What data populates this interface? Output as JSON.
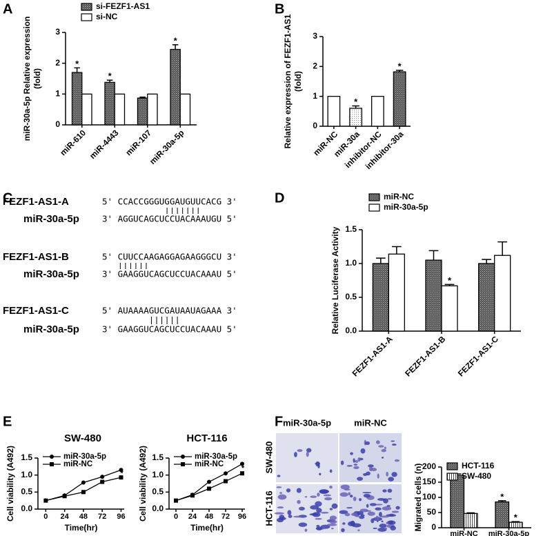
{
  "panel_labels": [
    "A",
    "B",
    "C",
    "D",
    "E",
    "F"
  ],
  "chart_data": [
    {
      "type": "bar",
      "categories": [
        "miR-610",
        "miR-4443",
        "miR-107",
        "miR-30a-5p"
      ],
      "series": [
        {
          "name": "si-FEZF1-AS1",
          "fill": "crosshatch",
          "values": [
            1.7,
            1.38,
            0.87,
            2.45
          ],
          "errors": [
            0.15,
            0.07,
            0.03,
            0.15
          ],
          "significance": [
            "*",
            "*",
            null,
            "*"
          ]
        },
        {
          "name": "si-NC",
          "fill": "white",
          "values": [
            1,
            1,
            1,
            1
          ]
        }
      ],
      "ylabel": [
        "miR-30a-5p Relative expression",
        "(fold)"
      ],
      "ylim": [
        0,
        3
      ],
      "yticks": [
        0,
        1,
        2,
        3
      ],
      "legend": "upper left"
    },
    {
      "type": "bar",
      "categories": [
        "miR-NC",
        "miR-30a",
        "inhibitor-NC",
        "inhibitor-30a"
      ],
      "values": [
        1,
        0.6,
        1,
        1.82
      ],
      "errors": [
        null,
        0.08,
        null,
        0.05
      ],
      "fills": [
        "white",
        "dots",
        "white",
        "crosshatch"
      ],
      "significance": [
        null,
        "*",
        null,
        "*"
      ],
      "ylabel": [
        "Relative expression of FEZF1-AS1",
        "(fold)"
      ],
      "ylim": [
        0,
        3
      ],
      "yticks": [
        0,
        1,
        2,
        3
      ]
    },
    {
      "type": "bar",
      "categories": [
        "FEZF1-AS1-A",
        "FEZF1-AS1-B",
        "FEZF1-AS1-C"
      ],
      "series": [
        {
          "name": "miR-NC",
          "fill": "crosshatch",
          "values": [
            1.0,
            1.05,
            1.0
          ],
          "errors": [
            0.08,
            0.14,
            0.06
          ]
        },
        {
          "name": "miR-30a-5p",
          "fill": "white",
          "values": [
            1.14,
            0.67,
            1.12
          ],
          "errors": [
            0.11,
            0.02,
            0.2
          ],
          "significance": [
            null,
            "*",
            null
          ]
        }
      ],
      "ylabel": [
        "Relative Luciferase Activity"
      ],
      "ylim": [
        0,
        1.5
      ],
      "yticks": [
        {
          "value": 0,
          "label": "0.0"
        },
        {
          "value": 0.5,
          "label": "0.5"
        },
        {
          "value": 1,
          "label": "1.0"
        },
        {
          "value": 1.5,
          "label": "1.5"
        }
      ],
      "legend": "upper left"
    },
    {
      "type": "line",
      "title": "SW-480",
      "x": [
        0,
        24,
        48,
        72,
        96
      ],
      "series": [
        {
          "name": "miR-30a-5p",
          "marker": "circle",
          "values": [
            0.25,
            0.4,
            0.78,
            0.95,
            1.15
          ]
        },
        {
          "name": "miR-NC",
          "marker": "square",
          "values": [
            0.25,
            0.38,
            0.5,
            0.8,
            0.93
          ],
          "significance": [
            null,
            null,
            null,
            null,
            "*"
          ]
        }
      ],
      "xlabel": "Time(hr)",
      "ylabel": [
        "Cell viability (A492)"
      ],
      "xlim": [
        -10,
        100
      ],
      "xticks": [
        0,
        24,
        48,
        72,
        96
      ],
      "ylim": [
        0,
        1.5
      ],
      "yticks": [
        {
          "value": 0,
          "label": "0.0"
        },
        {
          "value": 0.5,
          "label": "0.5"
        },
        {
          "value": 1,
          "label": "1.0"
        },
        {
          "value": 1.5,
          "label": "1.5"
        }
      ],
      "legend": "upper left"
    },
    {
      "type": "line",
      "title": "HCT-116",
      "x": [
        0,
        24,
        48,
        72,
        96
      ],
      "series": [
        {
          "name": "miR-30a-5p",
          "marker": "circle",
          "values": [
            0.25,
            0.42,
            0.8,
            1.05,
            1.33
          ]
        },
        {
          "name": "miR-NC",
          "marker": "square",
          "values": [
            0.25,
            0.4,
            0.6,
            0.82,
            1.05
          ],
          "significance": [
            null,
            null,
            null,
            null,
            "*"
          ]
        }
      ],
      "xlabel": "Time(hr)",
      "ylabel": [
        "Cell viability (A492)"
      ],
      "xlim": [
        -10,
        100
      ],
      "xticks": [
        0,
        24,
        48,
        72,
        96
      ],
      "ylim": [
        0,
        1.5
      ],
      "yticks": [
        {
          "value": 0,
          "label": "0.0"
        },
        {
          "value": 0.5,
          "label": "0.5"
        },
        {
          "value": 1,
          "label": "1.0"
        },
        {
          "value": 1.5,
          "label": "1.5"
        }
      ],
      "legend": "upper left"
    },
    {
      "type": "bar",
      "categories": [
        "miR-NC",
        "miR-30a-5p"
      ],
      "series": [
        {
          "name": "HCT-116",
          "fill": "crosshatch",
          "values": [
            172,
            85
          ],
          "errors": [
            5,
            4
          ],
          "significance": [
            null,
            "*"
          ]
        },
        {
          "name": "SW-480",
          "fill": "vlines",
          "values": [
            47,
            18
          ],
          "errors": [
            2,
            2
          ],
          "significance": [
            null,
            "*"
          ]
        }
      ],
      "ylabel": [
        "Migrated cells (n)"
      ],
      "ylim": [
        0,
        200
      ],
      "yticks": [
        0,
        50,
        100,
        150,
        200
      ],
      "legend": "upper right"
    }
  ],
  "sequences": [
    {
      "label": "FEZF1-AS1-A",
      "seq": "5' CCACCGGGUGGAUGUUCACG 3'"
    },
    {
      "label": "miR-30a-5p",
      "seq": "3' AGGUCAGCUCCUACAAAUGU 5'"
    },
    {
      "label": "FEZF1-AS1-B",
      "seq": "5' CUUCCAAGAGGAGAAGGGCU 3'"
    },
    {
      "label": "miR-30a-5p",
      "seq": "3' GAAGGUCAGCUCCUACAAAU 5'"
    },
    {
      "label": "FEZF1-AS1-C",
      "seq": "5' AUAAAAGUCGAUAAUAGAAA 3'"
    },
    {
      "label": "miR-30a-5p",
      "seq": "3' GAAGGUCAGCUCCUACAAAU 5'"
    }
  ],
  "images": {
    "columns": [
      "miR-30a-5p",
      "miR-NC"
    ],
    "rows": [
      "SW-480",
      "HCT-116"
    ]
  }
}
